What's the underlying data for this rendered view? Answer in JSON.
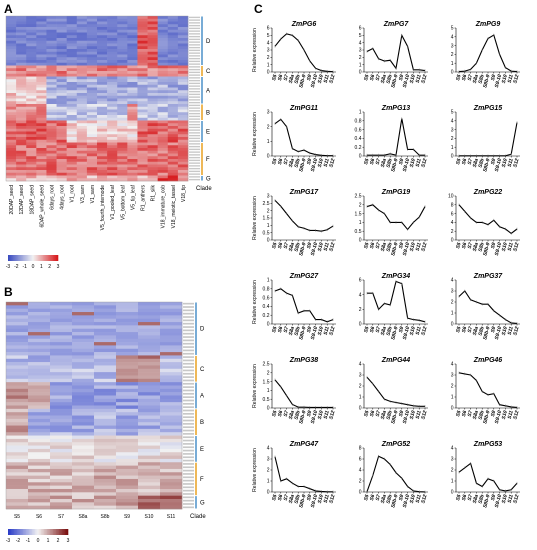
{
  "panel_labels": {
    "a": "A",
    "b": "B",
    "c": "C"
  },
  "heatmap_a": {
    "columns": [
      "20DAP_seed",
      "12DAP_seed",
      "18DAP_seed",
      "6DAP_whole_seed",
      "6days_root",
      "4days_root",
      "V1_root",
      "V3_sam",
      "V1_sam",
      "V5_fourth_internode",
      "V1_pooled_leaf",
      "V5_bottom_leaf",
      "V5_tip_leaf",
      "R1_anthers",
      "R1_silk",
      "V18_immature_cob",
      "V18_meiotic_tassel",
      "V18_tip"
    ],
    "clades": [
      "D",
      "C",
      "A",
      "B",
      "E",
      "F",
      "G"
    ],
    "clade_label": "Clade",
    "legend_ticks": [
      "-3",
      "-2",
      "-1",
      "0",
      "1",
      "2",
      "3"
    ]
  },
  "heatmap_b": {
    "columns": [
      "S5",
      "S6",
      "S7",
      "S8a",
      "S8b",
      "S9",
      "S10",
      "S11"
    ],
    "clades": [
      "D",
      "C",
      "A",
      "B",
      "E",
      "F",
      "G"
    ],
    "clade_label": "Clade",
    "legend_ticks": [
      "-3",
      "-2",
      "-1",
      "0",
      "1",
      "2",
      "3"
    ]
  },
  "colors": {
    "low": "#3b4cc0",
    "mid": "#f2f2f2",
    "high": "#d7191c",
    "legend_b_low": "#2c3ec8",
    "legend_b_high": "#7a1010"
  },
  "chart_data": {
    "type": "line",
    "x": [
      "S5",
      "S6",
      "S7",
      "S8a",
      "S8b",
      "S8b-9",
      "S9",
      "S9-10",
      "S10",
      "S11",
      "S12"
    ],
    "ylabel": "Relative expression",
    "panels": [
      {
        "name": "ZmPG6",
        "ylim": [
          0,
          6
        ],
        "yticks": [
          0,
          1,
          2,
          3,
          4,
          5,
          6
        ],
        "values": [
          3.5,
          4.5,
          5.2,
          5.0,
          4.3,
          3.0,
          1.5,
          0.5,
          0.2,
          0.1,
          0.05
        ]
      },
      {
        "name": "ZmPG7",
        "ylim": [
          0,
          6
        ],
        "yticks": [
          0,
          1,
          2,
          3,
          4,
          5,
          6
        ],
        "values": [
          2.8,
          3.2,
          1.8,
          1.5,
          1.6,
          0.5,
          5.0,
          3.5,
          0.3,
          0.3,
          0.2
        ]
      },
      {
        "name": "ZmPG9",
        "ylim": [
          0,
          5
        ],
        "yticks": [
          0,
          1,
          2,
          3,
          4,
          5
        ],
        "values": [
          0.05,
          0.1,
          0.3,
          1.0,
          2.5,
          3.8,
          4.2,
          2.0,
          0.5,
          0.1,
          0.05
        ]
      },
      {
        "name": "ZmPG11",
        "ylim": [
          0,
          3
        ],
        "yticks": [
          0,
          1,
          2,
          3
        ],
        "values": [
          2.2,
          2.5,
          2.0,
          0.5,
          0.3,
          0.4,
          0.2,
          0.1,
          0.05,
          0.02,
          0.02
        ]
      },
      {
        "name": "ZmPG13",
        "ylim": [
          0,
          1
        ],
        "yticks": [
          0,
          0.2,
          0.4,
          0.6,
          0.8,
          1
        ],
        "values": [
          0.02,
          0.02,
          0.02,
          0.02,
          0.05,
          0.02,
          0.85,
          0.15,
          0.15,
          0.02,
          0.02
        ]
      },
      {
        "name": "ZmPG15",
        "ylim": [
          0,
          5
        ],
        "yticks": [
          0,
          1,
          2,
          3,
          4,
          5
        ],
        "values": [
          0.02,
          0.02,
          0.02,
          0.02,
          0.02,
          0.02,
          0.02,
          0.02,
          0.02,
          0.2,
          3.8
        ]
      },
      {
        "name": "ZmPG17",
        "ylim": [
          0,
          3
        ],
        "yticks": [
          0,
          0.5,
          1,
          1.5,
          2,
          2.5,
          3
        ],
        "values": [
          2.7,
          2.3,
          1.8,
          1.3,
          0.9,
          0.8,
          0.65,
          0.65,
          0.6,
          0.7,
          0.95
        ]
      },
      {
        "name": "ZmPG19",
        "ylim": [
          0,
          2.5
        ],
        "yticks": [
          0,
          0.5,
          1,
          1.5,
          2,
          2.5
        ],
        "values": [
          1.9,
          2.0,
          1.7,
          1.5,
          1.0,
          1.0,
          1.0,
          0.6,
          1.0,
          1.3,
          1.9
        ]
      },
      {
        "name": "ZmPG22",
        "ylim": [
          0,
          10
        ],
        "yticks": [
          0,
          2,
          4,
          6,
          8,
          10
        ],
        "values": [
          8.0,
          6.5,
          5.0,
          4.0,
          4.0,
          3.5,
          4.5,
          3.0,
          2.5,
          1.5,
          2.5
        ]
      },
      {
        "name": "ZmPG27",
        "ylim": [
          0,
          1
        ],
        "yticks": [
          0,
          0.2,
          0.4,
          0.6,
          0.8,
          1
        ],
        "values": [
          0.75,
          0.8,
          0.7,
          0.65,
          0.25,
          0.3,
          0.3,
          0.1,
          0.1,
          0.05,
          0.1
        ]
      },
      {
        "name": "ZmPG34",
        "ylim": [
          0,
          6
        ],
        "yticks": [
          0,
          2,
          4,
          6
        ],
        "values": [
          4.2,
          4.2,
          2.0,
          2.8,
          2.6,
          5.8,
          5.5,
          0.8,
          0.6,
          0.5,
          0.3
        ]
      },
      {
        "name": "ZmPG37",
        "ylim": [
          0,
          4
        ],
        "yticks": [
          0,
          1,
          2,
          3,
          4
        ],
        "values": [
          2.5,
          3.0,
          2.2,
          2.0,
          1.8,
          1.8,
          1.2,
          0.8,
          0.4,
          0.1,
          0.05
        ]
      },
      {
        "name": "ZmPG38",
        "ylim": [
          0,
          2.5
        ],
        "yticks": [
          0,
          0.5,
          1,
          1.5,
          2,
          2.5
        ],
        "values": [
          1.6,
          1.2,
          0.7,
          0.2,
          0.05,
          0.05,
          0.03,
          0.03,
          0.03,
          0.03,
          0.03
        ]
      },
      {
        "name": "ZmPG44",
        "ylim": [
          0,
          4
        ],
        "yticks": [
          0,
          1,
          2,
          3,
          4
        ],
        "values": [
          2.8,
          2.2,
          1.5,
          0.8,
          0.6,
          0.5,
          0.4,
          0.3,
          0.2,
          0.15,
          0.15
        ]
      },
      {
        "name": "ZmPG46",
        "ylim": [
          0,
          4
        ],
        "yticks": [
          0,
          1,
          2,
          3,
          4
        ],
        "values": [
          3.2,
          3.1,
          3.0,
          2.5,
          1.5,
          1.2,
          1.3,
          0.3,
          0.2,
          0.1,
          0.05
        ]
      },
      {
        "name": "ZmPG47",
        "ylim": [
          0,
          4
        ],
        "yticks": [
          0,
          1,
          2,
          3,
          4
        ],
        "values": [
          3.2,
          1.0,
          1.2,
          0.8,
          0.5,
          0.5,
          0.3,
          0.1,
          0.05,
          0.02,
          0.02
        ]
      },
      {
        "name": "ZmPG52",
        "ylim": [
          0,
          8
        ],
        "yticks": [
          0,
          2,
          4,
          6,
          8
        ],
        "values": [
          0.05,
          3.0,
          6.5,
          6.0,
          5.0,
          3.5,
          2.5,
          1.0,
          0.2,
          0.05,
          0.02
        ]
      },
      {
        "name": "ZmPG53",
        "ylim": [
          0,
          4
        ],
        "yticks": [
          0,
          1,
          2,
          3,
          4
        ],
        "values": [
          1.8,
          2.2,
          2.6,
          0.8,
          0.5,
          1.2,
          1.0,
          0.2,
          0.1,
          0.2,
          0.8
        ]
      }
    ]
  }
}
